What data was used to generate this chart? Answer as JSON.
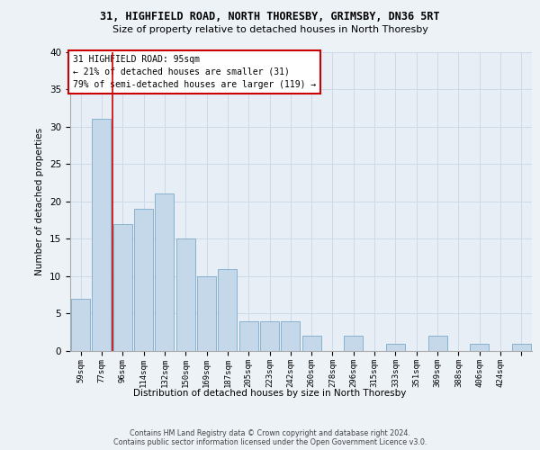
{
  "title_line1": "31, HIGHFIELD ROAD, NORTH THORESBY, GRIMSBY, DN36 5RT",
  "title_line2": "Size of property relative to detached houses in North Thoresby",
  "xlabel": "Distribution of detached houses by size in North Thoresby",
  "ylabel": "Number of detached properties",
  "bar_values": [
    7,
    31,
    17,
    19,
    21,
    15,
    10,
    11,
    4,
    4,
    4,
    2,
    0,
    2,
    0,
    1,
    0,
    2,
    0,
    1,
    0,
    1
  ],
  "bar_labels": [
    "59sqm",
    "77sqm",
    "96sqm",
    "114sqm",
    "132sqm",
    "150sqm",
    "169sqm",
    "187sqm",
    "205sqm",
    "223sqm",
    "242sqm",
    "260sqm",
    "278sqm",
    "296sqm",
    "315sqm",
    "333sqm",
    "351sqm",
    "369sqm",
    "388sqm",
    "406sqm",
    "424sqm",
    ""
  ],
  "bar_color": "#c5d8ea",
  "bar_edge_color": "#7aaac8",
  "grid_color": "#ccdae8",
  "annotation_text": "31 HIGHFIELD ROAD: 95sqm\n← 21% of detached houses are smaller (31)\n79% of semi-detached houses are larger (119) →",
  "annotation_box_color": "#ffffff",
  "annotation_box_edge": "#cc0000",
  "vline_x": 1.5,
  "vline_color": "#cc0000",
  "ylim": [
    0,
    40
  ],
  "yticks": [
    0,
    5,
    10,
    15,
    20,
    25,
    30,
    35,
    40
  ],
  "footer_line1": "Contains HM Land Registry data © Crown copyright and database right 2024.",
  "footer_line2": "Contains public sector information licensed under the Open Government Licence v3.0.",
  "bg_color": "#edf2f7",
  "plot_bg_color": "#e8eef5"
}
